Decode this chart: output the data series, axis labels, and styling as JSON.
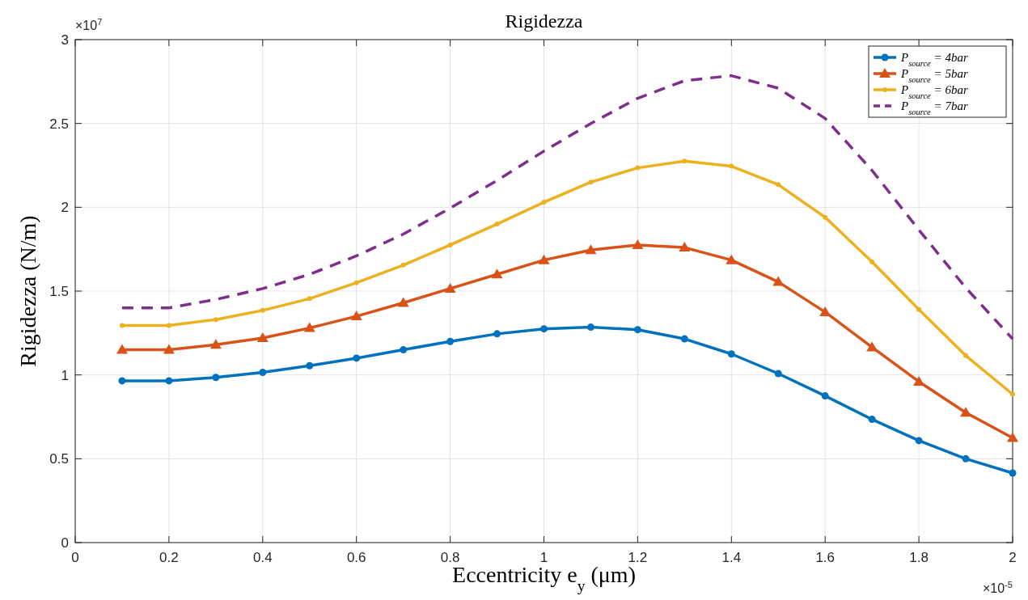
{
  "chart_data": {
    "type": "line",
    "title": "Rigidezza",
    "xlabel": "Eccentricity e$_{y}$ (μm)",
    "ylabel": "Rigidezza (N/m)",
    "annotations": [
      "×10$^{7}$",
      "×10$^{-5}$"
    ],
    "x": [
      0.1,
      0.2,
      0.3,
      0.4,
      0.5,
      0.6,
      0.7,
      0.8,
      0.9,
      1.0,
      1.1,
      1.2,
      1.3,
      1.4,
      1.5,
      1.6,
      1.7,
      1.8,
      1.9,
      2.0
    ],
    "series": [
      {
        "name": "P$_{source}$ = 4bar",
        "color": "#0072bd",
        "marker": "circle",
        "line_style": "solid",
        "values": [
          0.965,
          0.965,
          0.985,
          1.015,
          1.055,
          1.1,
          1.15,
          1.2,
          1.245,
          1.275,
          1.285,
          1.27,
          1.215,
          1.125,
          1.008,
          0.875,
          0.735,
          0.608,
          0.5,
          0.415
        ]
      },
      {
        "name": "P$_{source}$ = 5bar",
        "color": "#d95319",
        "marker": "triangle",
        "line_style": "solid",
        "values": [
          1.15,
          1.15,
          1.18,
          1.22,
          1.28,
          1.35,
          1.43,
          1.515,
          1.6,
          1.685,
          1.745,
          1.775,
          1.76,
          1.685,
          1.555,
          1.375,
          1.165,
          0.96,
          0.775,
          0.625
        ]
      },
      {
        "name": "P$_{source}$ = 6bar",
        "color": "#edb120",
        "marker": "circle",
        "line_style": "solid",
        "values": [
          1.295,
          1.295,
          1.33,
          1.385,
          1.455,
          1.55,
          1.655,
          1.775,
          1.9,
          2.03,
          2.15,
          2.235,
          2.275,
          2.245,
          2.135,
          1.94,
          1.675,
          1.39,
          1.115,
          0.885
        ]
      },
      {
        "name": "P$_{source}$ = 7bar",
        "color": "#7e2f8e",
        "marker": "none",
        "line_style": "dashed",
        "values": [
          1.4,
          1.4,
          1.45,
          1.515,
          1.6,
          1.71,
          1.84,
          1.995,
          2.16,
          2.335,
          2.5,
          2.65,
          2.755,
          2.785,
          2.71,
          2.53,
          2.22,
          1.865,
          1.52,
          1.215
        ]
      }
    ],
    "xlim": [
      0,
      2
    ],
    "xticks": [
      0,
      0.2,
      0.4,
      0.6,
      0.8,
      1,
      1.2,
      1.4,
      1.6,
      1.8,
      2
    ],
    "ylim": [
      0,
      3
    ],
    "yticks": [
      0,
      0.5,
      1,
      1.5,
      2,
      2.5,
      3
    ],
    "grid": true,
    "legend": "top right"
  }
}
